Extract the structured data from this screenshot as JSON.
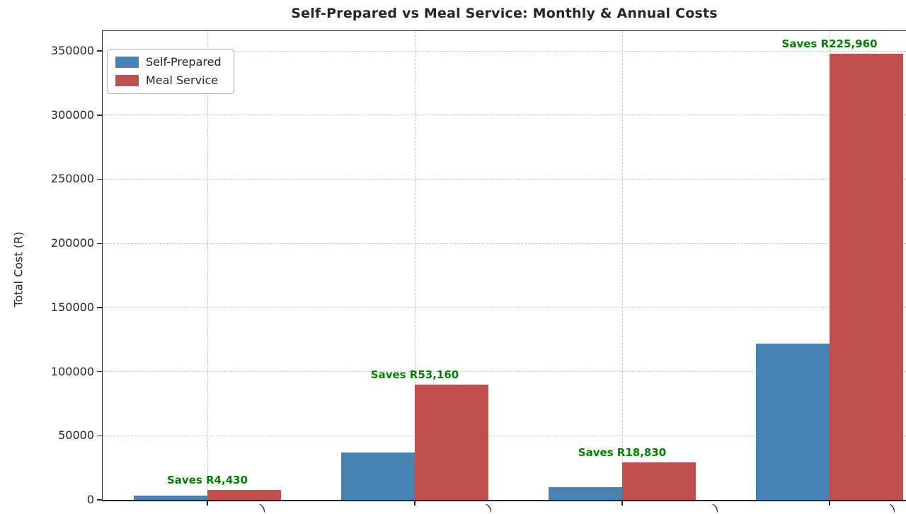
{
  "chart_data": {
    "type": "bar",
    "title": "Self-Prepared vs Meal Service: Monthly & Annual Costs",
    "ylabel": "Total Cost (R)",
    "categories": [
      "",
      "",
      "",
      ""
    ],
    "x_tick_fragments": [
      ")",
      ")",
      ")",
      ")"
    ],
    "series": [
      {
        "name": "Self-Prepared",
        "color": "#4682B4",
        "values": [
          3070,
          36840,
          10170,
          122040
        ]
      },
      {
        "name": "Meal Service",
        "color": "#C0504D",
        "values": [
          7500,
          90000,
          29000,
          348000
        ]
      }
    ],
    "annotations": [
      {
        "group": 0,
        "label": "Saves R4,430"
      },
      {
        "group": 1,
        "label": "Saves R53,160"
      },
      {
        "group": 2,
        "label": "Saves R18,830"
      },
      {
        "group": 3,
        "label": "Saves R225,960"
      }
    ],
    "annotation_color": "#008000",
    "yticks": [
      0,
      50000,
      100000,
      150000,
      200000,
      250000,
      300000,
      350000
    ],
    "ylim": [
      0,
      365400
    ],
    "grid": true,
    "legend_position": "upper left"
  }
}
